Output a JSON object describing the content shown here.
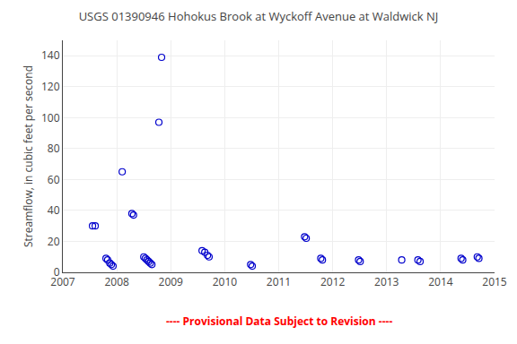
{
  "chart_data": {
    "type": "scatter",
    "title": "USGS 01390946 Hohokus Brook at Wyckoff Avenue at Waldwick NJ",
    "y_label": "Streamflow, in cubic feet per second",
    "x": [
      2007.55,
      2007.6,
      2007.8,
      2007.83,
      2007.87,
      2007.9,
      2007.93,
      2008.1,
      2008.28,
      2008.31,
      2008.5,
      2008.53,
      2008.56,
      2008.59,
      2008.62,
      2008.65,
      2008.78,
      2008.83,
      2009.58,
      2009.63,
      2009.68,
      2009.71,
      2010.48,
      2010.51,
      2011.48,
      2011.51,
      2011.78,
      2011.81,
      2012.48,
      2012.51,
      2013.28,
      2013.58,
      2013.62,
      2014.38,
      2014.41,
      2014.68,
      2014.71
    ],
    "values": [
      30,
      30,
      9,
      8,
      6,
      5,
      4,
      65,
      38,
      37,
      10,
      9,
      8,
      7,
      6,
      5,
      97,
      139,
      14,
      13,
      11,
      10,
      5,
      4,
      23,
      22,
      9,
      8,
      8,
      7,
      8,
      8,
      7,
      9,
      8,
      10,
      9
    ],
    "color": "#0000cc",
    "marker": "circle-open",
    "xlim": [
      2007,
      2015
    ],
    "xticks": [
      2007,
      2008,
      2009,
      2010,
      2011,
      2012,
      2013,
      2014,
      2015
    ],
    "ylim": [
      0,
      150
    ],
    "yticks": [
      0,
      20,
      40,
      60,
      80,
      100,
      120,
      140
    ],
    "grid": true,
    "annotations": [
      {
        "text": "---- Provisional Data Subject to Revision ----",
        "color": "#ff0000"
      }
    ]
  }
}
